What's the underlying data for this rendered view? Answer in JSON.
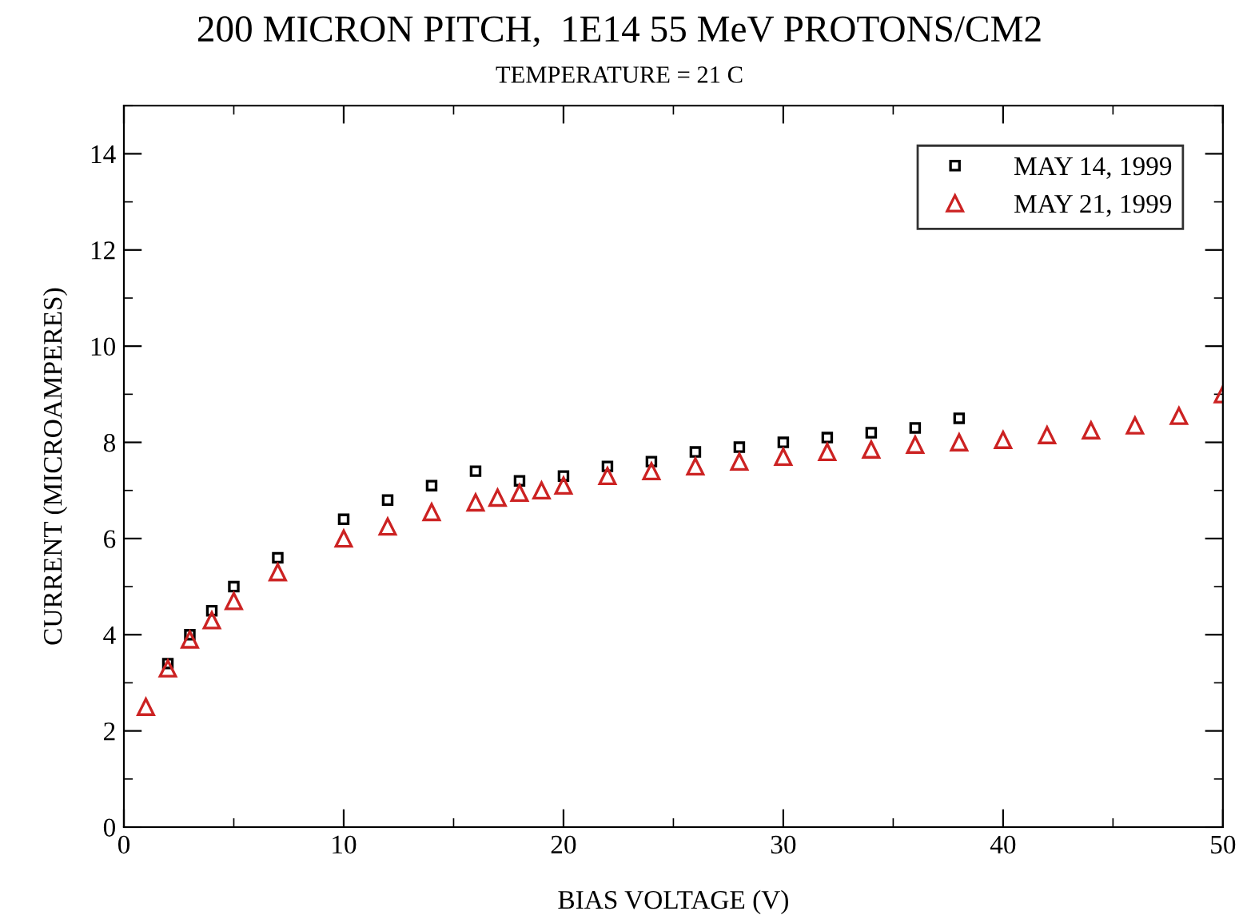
{
  "chart_data": {
    "type": "scatter",
    "title": "200 MICRON PITCH,  1E14 55 MeV PROTONS/CM2",
    "subtitle": "TEMPERATURE = 21 C",
    "xlabel": "BIAS VOLTAGE (V)",
    "ylabel": "CURRENT (MICROAMPERES)",
    "xlim": [
      0,
      50
    ],
    "ylim": [
      0,
      15
    ],
    "xticks": [
      0,
      10,
      20,
      30,
      40,
      50
    ],
    "yticks": [
      0,
      2,
      4,
      6,
      8,
      10,
      12,
      14
    ],
    "grid": false,
    "legend": "top right",
    "series": [
      {
        "name": "MAY 14, 1999",
        "color": "#000000",
        "marker": "square",
        "x": [
          2,
          3,
          4,
          5,
          7,
          10,
          12,
          14,
          16,
          18,
          20,
          22,
          24,
          26,
          28,
          30,
          32,
          34,
          36,
          38
        ],
        "values": [
          3.4,
          4.0,
          4.5,
          5.0,
          5.6,
          6.4,
          6.8,
          7.1,
          7.4,
          7.2,
          7.3,
          7.5,
          7.6,
          7.8,
          7.9,
          8.0,
          8.1,
          8.2,
          8.3,
          8.5
        ]
      },
      {
        "name": "MAY 21, 1999",
        "color": "#cc2222",
        "marker": "triangle",
        "x": [
          1,
          2,
          3,
          4,
          5,
          7,
          10,
          12,
          14,
          16,
          17,
          18,
          19,
          20,
          22,
          24,
          26,
          28,
          30,
          32,
          34,
          36,
          38,
          40,
          42,
          44,
          46,
          48,
          50
        ],
        "values": [
          2.5,
          3.3,
          3.9,
          4.3,
          4.7,
          5.3,
          6.0,
          6.25,
          6.55,
          6.75,
          6.85,
          6.95,
          7.0,
          7.1,
          7.3,
          7.4,
          7.5,
          7.6,
          7.7,
          7.8,
          7.85,
          7.95,
          8.0,
          8.05,
          8.15,
          8.25,
          8.35,
          8.55,
          9.0
        ]
      }
    ]
  }
}
